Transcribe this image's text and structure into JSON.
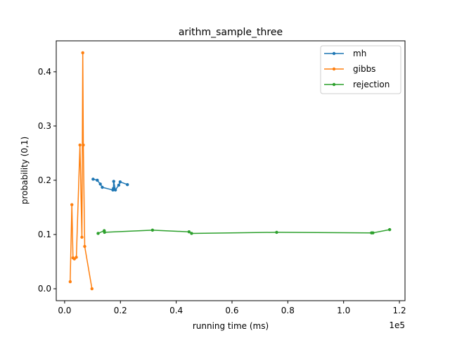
{
  "chart_data": {
    "type": "line",
    "title": "arithm_sample_three",
    "xlabel": "running time (ms)",
    "ylabel": "probability (0,1)",
    "x_offset_label": "1e5",
    "xlim": [
      -0.03,
      1.22
    ],
    "ylim": [
      -0.022,
      0.457
    ],
    "x_ticks": [
      0.0,
      0.2,
      0.4,
      0.6,
      0.8,
      1.0,
      1.2
    ],
    "x_tick_labels": [
      "0.0",
      "0.2",
      "0.4",
      "0.6",
      "0.8",
      "1.0",
      "1.2"
    ],
    "y_ticks": [
      0.0,
      0.1,
      0.2,
      0.3,
      0.4
    ],
    "y_tick_labels": [
      "0.0",
      "0.1",
      "0.2",
      "0.3",
      "0.4"
    ],
    "grid": false,
    "legend_position": "top-right",
    "series": [
      {
        "name": "mh",
        "color": "#1f77b4",
        "x": [
          0.102,
          0.117,
          0.128,
          0.135,
          0.173,
          0.175,
          0.176,
          0.182,
          0.194,
          0.199,
          0.225
        ],
        "y": [
          0.202,
          0.2,
          0.193,
          0.187,
          0.182,
          0.185,
          0.198,
          0.182,
          0.191,
          0.197,
          0.192
        ]
      },
      {
        "name": "gibbs",
        "color": "#ff7f0e",
        "x": [
          0.02,
          0.026,
          0.03,
          0.035,
          0.042,
          0.055,
          0.062,
          0.065,
          0.067,
          0.072,
          0.098
        ],
        "y": [
          0.013,
          0.155,
          0.057,
          0.055,
          0.058,
          0.265,
          0.095,
          0.435,
          0.265,
          0.078,
          0.0
        ]
      },
      {
        "name": "rejection",
        "color": "#2ca02c",
        "x": [
          0.12,
          0.142,
          0.143,
          0.315,
          0.446,
          0.455,
          0.76,
          1.1,
          1.105,
          1.165
        ],
        "y": [
          0.102,
          0.107,
          0.104,
          0.108,
          0.105,
          0.102,
          0.104,
          0.103,
          0.103,
          0.109
        ]
      }
    ]
  }
}
